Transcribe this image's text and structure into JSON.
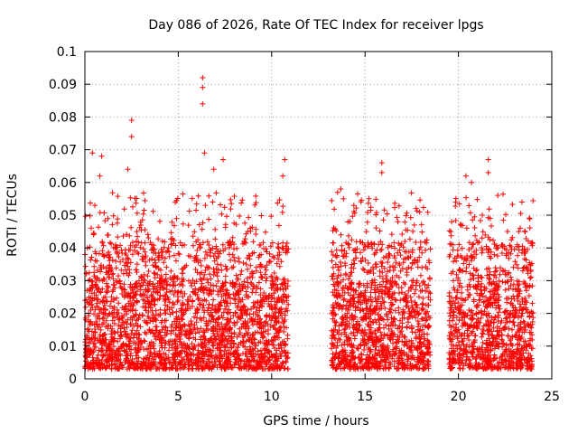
{
  "chart_data": {
    "type": "scatter",
    "title": "Day 086 of 2026, Rate Of TEC Index for receiver lpgs",
    "xlabel": "GPS time / hours",
    "ylabel": "ROTI / TECUs",
    "xlim": [
      0,
      25
    ],
    "ylim": [
      0,
      0.1
    ],
    "xticks": [
      "0",
      "5",
      "10",
      "15",
      "20",
      "25"
    ],
    "yticks": [
      "0",
      "0.01",
      "0.02",
      "0.03",
      "0.04",
      "0.05",
      "0.06",
      "0.07",
      "0.08",
      "0.09",
      "0.1"
    ],
    "grid": true,
    "marker": "+",
    "color": "#ff0000",
    "series": [
      {
        "name": "ROTI",
        "data_segments": [
          {
            "x_start": 0.0,
            "x_end": 10.9,
            "typical_range": [
              0.003,
              0.03
            ]
          },
          {
            "x_start": 13.2,
            "x_end": 18.5,
            "typical_range": [
              0.003,
              0.03
            ]
          },
          {
            "x_start": 19.5,
            "x_end": 24.0,
            "typical_range": [
              0.003,
              0.03
            ]
          }
        ],
        "highlights": [
          {
            "x": 0.4,
            "y": 0.069
          },
          {
            "x": 0.9,
            "y": 0.068
          },
          {
            "x": 0.8,
            "y": 0.062
          },
          {
            "x": 2.5,
            "y": 0.079
          },
          {
            "x": 2.5,
            "y": 0.074
          },
          {
            "x": 2.3,
            "y": 0.064
          },
          {
            "x": 6.3,
            "y": 0.092
          },
          {
            "x": 6.3,
            "y": 0.089
          },
          {
            "x": 6.3,
            "y": 0.084
          },
          {
            "x": 7.4,
            "y": 0.067
          },
          {
            "x": 6.9,
            "y": 0.064
          },
          {
            "x": 6.4,
            "y": 0.069
          },
          {
            "x": 10.7,
            "y": 0.067
          },
          {
            "x": 10.6,
            "y": 0.062
          },
          {
            "x": 15.9,
            "y": 0.066
          },
          {
            "x": 15.9,
            "y": 0.063
          },
          {
            "x": 13.7,
            "y": 0.058
          },
          {
            "x": 21.6,
            "y": 0.067
          },
          {
            "x": 21.6,
            "y": 0.063
          },
          {
            "x": 20.4,
            "y": 0.062
          },
          {
            "x": 20.7,
            "y": 0.06
          },
          {
            "x": 23.4,
            "y": 0.054
          }
        ]
      }
    ]
  }
}
